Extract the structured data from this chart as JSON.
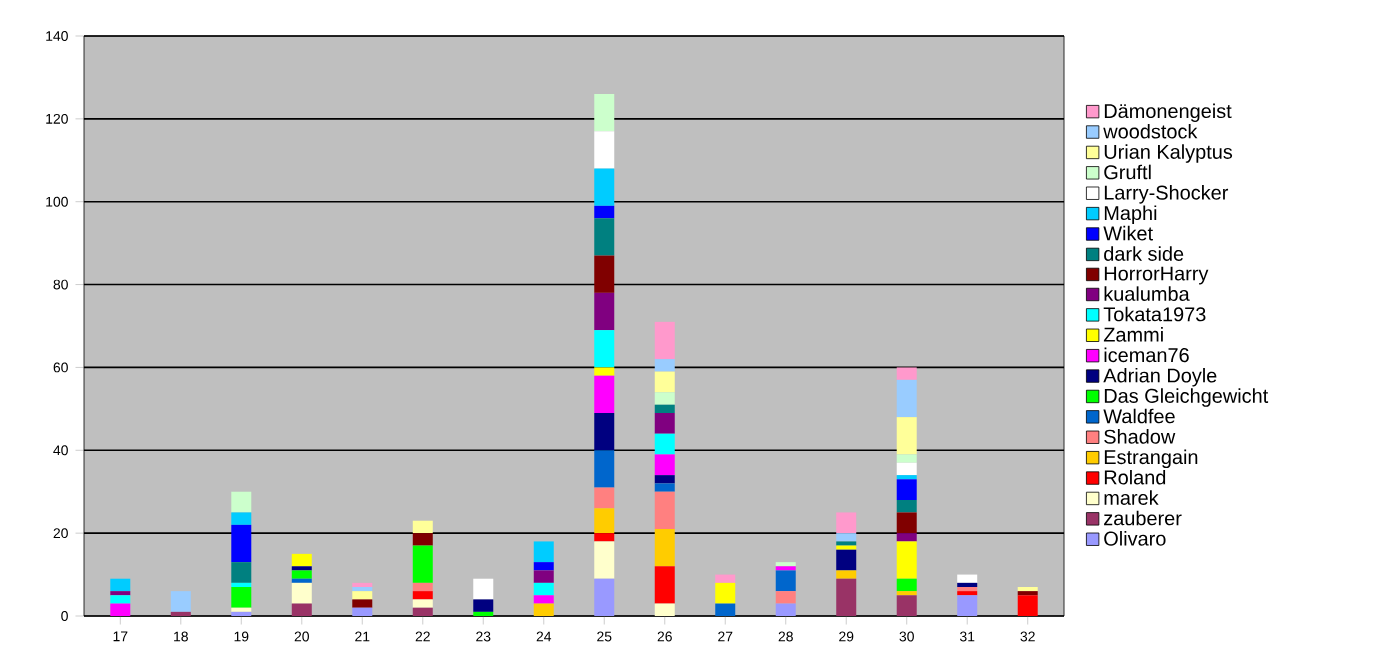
{
  "chart_data": {
    "type": "bar",
    "stacked": true,
    "legend": "right",
    "grid": "y",
    "categories": [
      "17",
      "18",
      "19",
      "20",
      "21",
      "22",
      "23",
      "24",
      "25",
      "26",
      "27",
      "28",
      "29",
      "30",
      "31",
      "32"
    ],
    "ylim": [
      0,
      140
    ],
    "yticks": [
      0,
      20,
      40,
      60,
      80,
      100,
      120,
      140
    ],
    "series": [
      {
        "name": "Olivaro",
        "color": "#9999ff",
        "values": [
          0,
          0,
          1,
          0,
          2,
          0,
          0,
          0,
          9,
          0,
          0,
          3,
          0,
          0,
          5,
          0
        ]
      },
      {
        "name": "zauberer",
        "color": "#993366",
        "values": [
          0,
          1,
          0,
          3,
          0,
          2,
          0,
          0,
          0,
          0,
          0,
          0,
          9,
          5,
          0,
          0
        ]
      },
      {
        "name": "marek",
        "color": "#ffffcc",
        "values": [
          0,
          0,
          1,
          5,
          0,
          2,
          0,
          0,
          9,
          3,
          0,
          0,
          0,
          0,
          0,
          0
        ]
      },
      {
        "name": "Roland",
        "color": "#ff0000",
        "values": [
          0,
          0,
          0,
          0,
          0,
          2,
          0,
          0,
          2,
          9,
          0,
          0,
          0,
          0,
          1,
          5
        ]
      },
      {
        "name": "Estrangain",
        "color": "#ffcc00",
        "values": [
          0,
          0,
          0,
          0,
          0,
          0,
          0,
          3,
          6,
          9,
          0,
          0,
          2,
          1,
          0,
          0
        ]
      },
      {
        "name": "Shadow",
        "color": "#ff8080",
        "values": [
          0,
          0,
          0,
          0,
          0,
          2,
          0,
          0,
          5,
          9,
          0,
          3,
          0,
          0,
          1,
          0
        ]
      },
      {
        "name": "Waldfee",
        "color": "#0066cc",
        "values": [
          0,
          0,
          0,
          1,
          0,
          0,
          0,
          0,
          9,
          2,
          3,
          5,
          0,
          0,
          0,
          0
        ]
      },
      {
        "name": "Das Gleichgewicht",
        "color": "#00ff00",
        "values": [
          0,
          0,
          5,
          2,
          0,
          9,
          1,
          0,
          0,
          0,
          0,
          0,
          0,
          3,
          0,
          0
        ]
      },
      {
        "name": "Adrian Doyle",
        "color": "#000080",
        "values": [
          0,
          0,
          0,
          1,
          0,
          0,
          3,
          0,
          9,
          2,
          0,
          0,
          5,
          0,
          1,
          0
        ]
      },
      {
        "name": "iceman76",
        "color": "#ff00ff",
        "values": [
          3,
          0,
          0,
          0,
          0,
          0,
          0,
          2,
          9,
          5,
          0,
          1,
          0,
          0,
          0,
          0
        ]
      },
      {
        "name": "Zammi",
        "color": "#ffff00",
        "values": [
          0,
          0,
          0,
          3,
          0,
          0,
          0,
          0,
          2,
          0,
          5,
          0,
          1,
          9,
          0,
          0
        ]
      },
      {
        "name": "Tokata1973",
        "color": "#00ffff",
        "values": [
          2,
          0,
          1,
          0,
          0,
          0,
          0,
          3,
          9,
          5,
          0,
          0,
          0,
          0,
          0,
          0
        ]
      },
      {
        "name": "kualumba",
        "color": "#800080",
        "values": [
          1,
          0,
          0,
          0,
          0,
          0,
          0,
          3,
          9,
          5,
          0,
          0,
          0,
          2,
          0,
          0
        ]
      },
      {
        "name": "HorrorHarry",
        "color": "#800000",
        "values": [
          0,
          0,
          0,
          0,
          2,
          3,
          0,
          0,
          9,
          0,
          0,
          0,
          0,
          5,
          0,
          1
        ]
      },
      {
        "name": "dark side",
        "color": "#008080",
        "values": [
          0,
          0,
          5,
          0,
          0,
          0,
          0,
          0,
          9,
          2,
          0,
          0,
          1,
          3,
          0,
          0
        ]
      },
      {
        "name": "Wiket",
        "color": "#0000ff",
        "values": [
          0,
          0,
          9,
          0,
          0,
          0,
          0,
          2,
          3,
          0,
          0,
          0,
          0,
          5,
          0,
          0
        ]
      },
      {
        "name": "Maphi",
        "color": "#00ccff",
        "values": [
          3,
          0,
          3,
          0,
          0,
          0,
          0,
          5,
          9,
          0,
          0,
          0,
          0,
          1,
          0,
          0
        ]
      },
      {
        "name": "Larry-Shocker",
        "color": "#ffffff",
        "values": [
          0,
          0,
          0,
          0,
          0,
          0,
          5,
          0,
          9,
          0,
          0,
          0,
          0,
          3,
          2,
          0
        ]
      },
      {
        "name": "Gruftl",
        "color": "#ccffcc",
        "values": [
          0,
          0,
          5,
          0,
          0,
          0,
          0,
          0,
          9,
          3,
          0,
          1,
          0,
          2,
          0,
          0
        ]
      },
      {
        "name": "Urian Kalyptus",
        "color": "#ffff99",
        "values": [
          0,
          0,
          0,
          0,
          2,
          3,
          0,
          0,
          0,
          5,
          0,
          0,
          0,
          9,
          0,
          1
        ]
      },
      {
        "name": "woodstock",
        "color": "#99ccff",
        "values": [
          0,
          5,
          0,
          0,
          1,
          0,
          0,
          0,
          0,
          3,
          0,
          0,
          2,
          9,
          0,
          0
        ]
      },
      {
        "name": "Dämonengeist",
        "color": "#ff99cc",
        "values": [
          0,
          0,
          0,
          0,
          1,
          0,
          0,
          0,
          0,
          9,
          2,
          0,
          5,
          3,
          0,
          0
        ]
      }
    ]
  }
}
